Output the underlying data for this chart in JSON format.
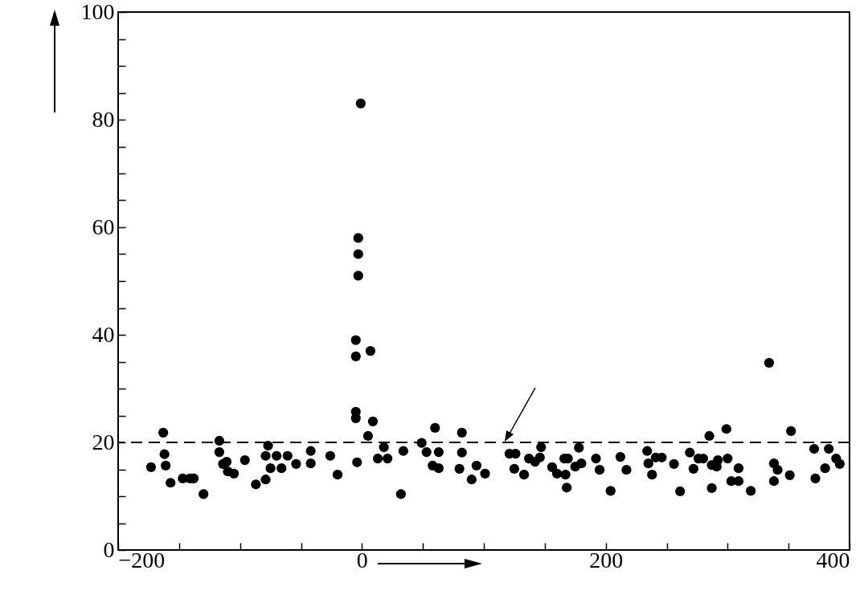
{
  "chart_data": {
    "type": "scatter",
    "marker": "circle",
    "grid": false,
    "xlim": [
      -200,
      400
    ],
    "xticks": [
      {
        "value": -200,
        "label": "−200"
      },
      {
        "value": -150,
        "label": null
      },
      {
        "value": -100,
        "label": null
      },
      {
        "value": -50,
        "label": null
      },
      0,
      {
        "value": 50,
        "label": null
      },
      {
        "value": 100,
        "label": null
      },
      {
        "value": 150,
        "label": null
      },
      200,
      {
        "value": 250,
        "label": null
      },
      {
        "value": 300,
        "label": null
      },
      {
        "value": 350,
        "label": null
      },
      400
    ],
    "ylim": [
      0,
      100
    ],
    "yticks": [
      0,
      {
        "value": 5,
        "label": null
      },
      {
        "value": 10,
        "label": null
      },
      {
        "value": 15,
        "label": null
      },
      20,
      {
        "value": 25,
        "label": null
      },
      {
        "value": 30,
        "label": null
      },
      {
        "value": 35,
        "label": null
      },
      40,
      {
        "value": 45,
        "label": null
      },
      {
        "value": 50,
        "label": null
      },
      {
        "value": 55,
        "label": null
      },
      60,
      {
        "value": 65,
        "label": null
      },
      {
        "value": 70,
        "label": null
      },
      {
        "value": 75,
        "label": null
      },
      80,
      {
        "value": 85,
        "label": null
      },
      {
        "value": 90,
        "label": null
      },
      {
        "value": 95,
        "label": null
      },
      100
    ],
    "ref_lines": [
      {
        "axis": "y",
        "value": 20,
        "line_style": "dashed",
        "color": "#000000"
      }
    ],
    "series": [
      {
        "color": "#000000",
        "x": [
          -173,
          -163,
          -162,
          -161,
          -157,
          -147,
          -141,
          -138,
          -130,
          -117,
          -117,
          -114,
          -111,
          -110,
          -105,
          -96,
          -87,
          -79,
          -77,
          -79,
          -75,
          -70,
          -66,
          -61,
          -54,
          -42,
          -42,
          -26,
          -20,
          -5,
          -5,
          -4,
          5,
          -1,
          -3,
          -3,
          -3,
          -5,
          -5,
          7,
          9,
          18,
          13,
          21,
          34,
          32,
          49,
          53,
          60,
          63,
          58,
          63,
          82,
          82,
          80,
          90,
          94,
          101,
          121,
          126,
          125,
          133,
          137,
          142,
          146,
          147,
          156,
          160,
          166,
          169,
          167,
          168,
          175,
          180,
          178,
          192,
          195,
          204,
          212,
          217,
          234,
          235,
          238,
          241,
          246,
          256,
          261,
          269,
          272,
          276,
          280,
          285,
          287,
          287,
          291,
          292,
          299,
          300,
          303,
          309,
          309,
          319,
          338,
          341,
          338,
          351,
          352,
          334,
          371,
          372,
          380,
          383,
          389,
          392
        ],
        "values": [
          15.4,
          21.8,
          17.8,
          15.7,
          12.5,
          13.3,
          13.3,
          13.3,
          10.4,
          20.3,
          18.2,
          16,
          16.4,
          14.6,
          14.2,
          16.7,
          12.2,
          13.1,
          19.4,
          17.5,
          15.2,
          17.5,
          15.2,
          17.5,
          16,
          18.4,
          16.1,
          17.5,
          14,
          25.7,
          24.5,
          16.3,
          21.2,
          83,
          58,
          55,
          51,
          39,
          36,
          37,
          23.9,
          19.1,
          17,
          17,
          18.4,
          10.4,
          19.9,
          18.2,
          22.7,
          18.2,
          15.7,
          15.2,
          21.8,
          18.1,
          15.1,
          13.1,
          15.7,
          14.2,
          17.9,
          17.9,
          15.1,
          14,
          17,
          16.4,
          17.2,
          19.1,
          15.4,
          14.2,
          17,
          17,
          14,
          11.6,
          15.5,
          16.1,
          19,
          17,
          14.9,
          11,
          17.3,
          14.9,
          18.4,
          16.1,
          14,
          17.2,
          17.2,
          16,
          10.9,
          18.1,
          15.1,
          17,
          17,
          21.2,
          11.5,
          15.8,
          15.5,
          16.7,
          22.5,
          17,
          12.8,
          12.8,
          15.2,
          11,
          16.1,
          14.9,
          12.8,
          13.9,
          22.1,
          34.8,
          18.8,
          13.3,
          15.2,
          18.8,
          17,
          16
        ]
      }
    ]
  }
}
